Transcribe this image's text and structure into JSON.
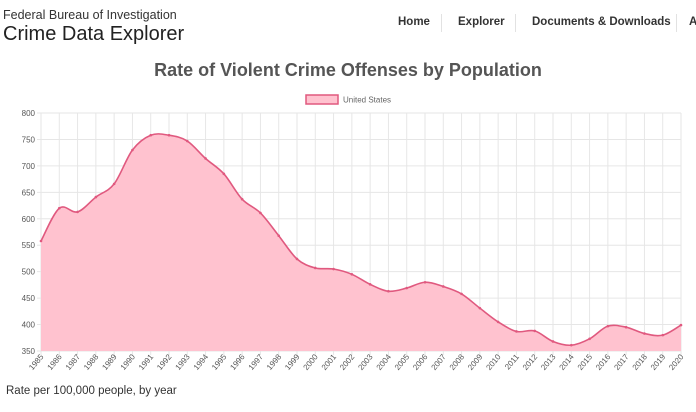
{
  "header": {
    "agency": "Federal Bureau of Investigation",
    "app_name": "Crime Data Explorer",
    "nav": [
      "Home",
      "Explorer",
      "Documents & Downloads",
      "A"
    ]
  },
  "footnote": "Rate per 100,000 people, by year",
  "colors": {
    "series_line": "#e0597f",
    "series_fill": "#ffc2cf",
    "grid": "#e6e6e6"
  },
  "chart_data": {
    "type": "area",
    "title": "Rate of Violent Crime Offenses by Population",
    "xlabel": "",
    "ylabel": "",
    "ylim": [
      350,
      800
    ],
    "yticks": [
      350,
      400,
      450,
      500,
      550,
      600,
      650,
      700,
      750,
      800
    ],
    "grid": true,
    "legend_position": "top-center",
    "x": [
      "1985",
      "1986",
      "1987",
      "1988",
      "1989",
      "1990",
      "1991",
      "1992",
      "1993",
      "1994",
      "1995",
      "1996",
      "1997",
      "1998",
      "1999",
      "2000",
      "2001",
      "2002",
      "2003",
      "2004",
      "2005",
      "2006",
      "2007",
      "2008",
      "2009",
      "2010",
      "2011",
      "2012",
      "2013",
      "2014",
      "2015",
      "2016",
      "2017",
      "2018",
      "2019",
      "2020"
    ],
    "series": [
      {
        "name": "United States",
        "values": [
          558,
          620,
          613,
          641,
          666,
          730,
          758,
          758,
          747,
          714,
          685,
          637,
          611,
          568,
          524,
          507,
          505,
          495,
          476,
          463,
          469,
          480,
          472,
          458,
          431,
          405,
          387,
          388,
          368,
          361,
          373,
          397,
          395,
          383,
          380,
          399
        ]
      }
    ]
  }
}
